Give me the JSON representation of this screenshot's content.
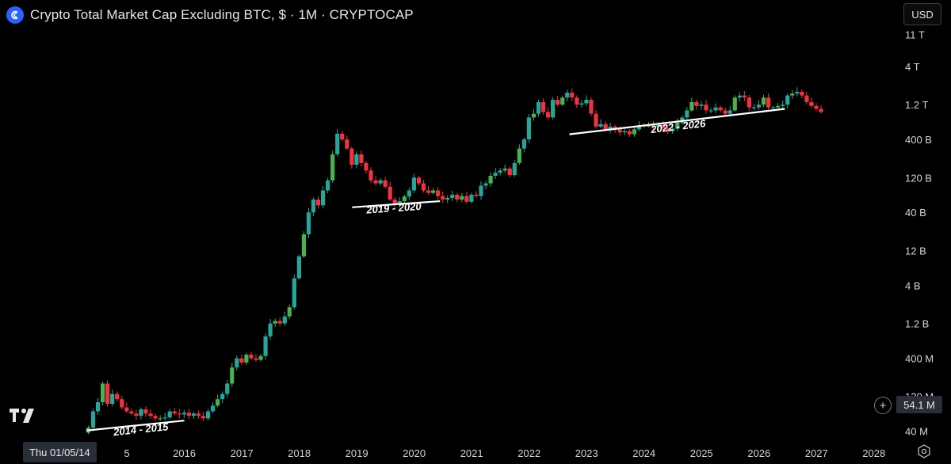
{
  "header": {
    "title": "Crypto Total Market Cap Excluding BTC, $ · 1M · CRYPTOCAP",
    "currency": "USD",
    "logo_icon": "market-cap-logo-icon"
  },
  "crosshair": {
    "date_label": "Thu 01/05/14",
    "price_label": "54.1 M"
  },
  "colors": {
    "up": "#26a69a",
    "up_alt": "#4caf50",
    "down": "#ef3340",
    "background": "#000000",
    "axis_text": "#d1d4dc",
    "trendline": "#ffffff"
  },
  "chart_data": {
    "type": "candlestick",
    "title": "Crypto Total Market Cap Excluding BTC",
    "interval": "1M",
    "scale": "log",
    "y_axis_ticks": [
      "40 M",
      "120 M",
      "400 M",
      "1.2 B",
      "4 B",
      "12 B",
      "40 B",
      "120 B",
      "400 B",
      "1.2 T",
      "4 T",
      "11 T"
    ],
    "y_axis_tick_values": [
      40000000,
      120000000,
      400000000,
      1200000000,
      4000000000,
      12000000000,
      40000000000,
      120000000000,
      400000000000,
      1200000000000,
      4000000000000,
      11000000000000
    ],
    "x_axis_ticks": [
      "5",
      "2016",
      "2017",
      "2018",
      "2019",
      "2020",
      "2021",
      "2022",
      "2023",
      "2024",
      "2025",
      "2026",
      "2027",
      "2028"
    ],
    "x_axis_tick_values": [
      2015,
      2016,
      2017,
      2018,
      2019,
      2020,
      2021,
      2022,
      2023,
      2024,
      2025,
      2026,
      2027,
      2028
    ],
    "x_range": [
      2013.62,
      2028.1
    ],
    "y_range": [
      35000000,
      12000000000000
    ],
    "series": [
      {
        "close_values": [
          45000000,
          75000000,
          100000000,
          180000000,
          95000000,
          130000000,
          110000000,
          85000000,
          75000000,
          70000000,
          65000000,
          80000000,
          70000000,
          65000000,
          60000000,
          60000000,
          62000000,
          75000000,
          70000000,
          68000000,
          72000000,
          65000000,
          70000000,
          65000000,
          60000000,
          75000000,
          90000000,
          110000000,
          130000000,
          180000000,
          300000000,
          400000000,
          350000000,
          450000000,
          400000000,
          380000000,
          430000000,
          800000000,
          1200000000,
          1300000000,
          1200000000,
          1500000000,
          2000000000,
          5000000000,
          10000000000,
          20000000000,
          40000000000,
          60000000000,
          50000000000,
          80000000000,
          110000000000,
          250000000000,
          480000000000,
          400000000000,
          300000000000,
          180000000000,
          250000000000,
          190000000000,
          150000000000,
          110000000000,
          100000000000,
          110000000000,
          90000000000,
          60000000000,
          52000000000,
          57000000000,
          66000000000,
          80000000000,
          120000000000,
          100000000000,
          80000000000,
          74000000000,
          80000000000,
          67000000000,
          60000000000,
          63000000000,
          70000000000,
          60000000000,
          67000000000,
          56000000000,
          70000000000,
          67000000000,
          93000000000,
          100000000000,
          127000000000,
          140000000000,
          150000000000,
          160000000000,
          130000000000,
          190000000000,
          300000000000,
          400000000000,
          800000000000,
          900000000000,
          1300000000000,
          950000000000,
          800000000000,
          1400000000000,
          1200000000000,
          1500000000000,
          1750000000000,
          1500000000000,
          1200000000000,
          1250000000000,
          1400000000000,
          900000000000,
          600000000000,
          650000000000,
          550000000000,
          600000000000,
          550000000000,
          500000000000,
          520000000000,
          470000000000,
          550000000000,
          620000000000,
          610000000000,
          620000000000,
          600000000000,
          630000000000,
          570000000000,
          520000000000,
          560000000000,
          680000000000,
          800000000000,
          1000000000000,
          1300000000000,
          1150000000000,
          1200000000000,
          1000000000000,
          1000000000000,
          1100000000000,
          1000000000000,
          900000000000,
          1000000000000,
          1500000000000,
          1600000000000,
          1500000000000,
          1100000000000,
          1100000000000,
          1200000000000,
          1500000000000,
          1100000000000,
          1100000000000,
          1150000000000,
          1200000000000,
          1600000000000,
          1700000000000,
          1800000000000,
          1600000000000,
          1300000000000,
          1150000000000,
          1050000000000,
          950000000000
        ]
      }
    ],
    "annotations": [
      "2014 - 2015",
      "2019 - 2020",
      "2022 - 2026"
    ]
  }
}
